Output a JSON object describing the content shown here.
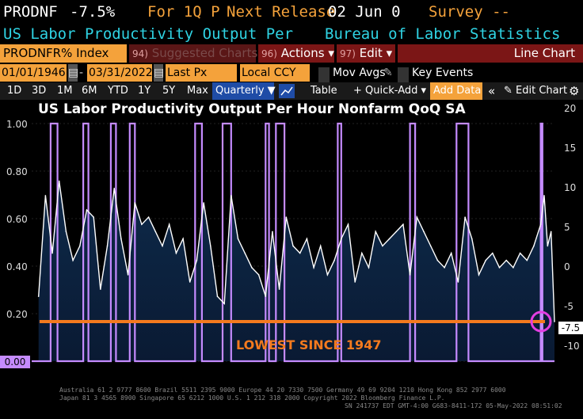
{
  "header": {
    "ticker": "PRODNF",
    "last_value": "-7.5%",
    "period_label": "For 1Q P",
    "next_release_label": "Next Release",
    "next_release_date": "02 Jun 0",
    "survey_label": "Survey --",
    "description": "US Labor Productivity Output Per",
    "source": "Bureau of Labor Statistics"
  },
  "toolbar1": {
    "ticker_field": "PRODNFR% Index",
    "suggested_num": "94)",
    "suggested_label": "Suggested Charts",
    "actions_num": "96)",
    "actions_label": "Actions",
    "edit_num": "97)",
    "edit_label": "Edit",
    "chart_type": "Line Chart"
  },
  "toolbar2": {
    "start_date": "01/01/1946",
    "end_date": "03/31/2022",
    "price_field": "Last Px",
    "currency_field": "Local CCY",
    "mov_avgs_label": "Mov Avgs",
    "key_events_label": "Key Events"
  },
  "toolbar3": {
    "periods": [
      "1D",
      "3D",
      "1M",
      "6M",
      "YTD",
      "1Y",
      "5Y",
      "Max"
    ],
    "frequency": "Quarterly",
    "table_label": "Table",
    "quick_add_label": "Quick-Add",
    "add_data_label": "Add Data",
    "edit_chart_label": "Edit Chart"
  },
  "chart": {
    "title": "US Labor Productivity Output Per Hour Nonfarm QoQ SA",
    "annotation": "LOWEST SINCE 1947",
    "last_value_flag": "-7.5",
    "recession_axis_flag": "0.00",
    "footer_line1": "Australia 61 2 9777 8600 Brazil 5511 2395 9000 Europe 44 20 7330 7500 Germany 49 69 9204 1210 Hong Kong 852 2977 6000",
    "footer_line2": "Japan 81 3 4565 8900   Singapore 65 6212 1000   U.S. 1 212 318 2000        Copyright 2022 Bloomberg Finance L.P.",
    "footer_line3": "SN 241737 EDT  GMT-4:00 G683-8411-172 05-May-2022 08:51:02"
  },
  "chart_data": {
    "type": "line",
    "title": "US Labor Productivity Output Per Hour Nonfarm QoQ SA",
    "x_range": [
      1946,
      2022
    ],
    "left_axis": {
      "ticks": [
        "1.00",
        "0.80",
        "0.60",
        "0.40",
        "0.20",
        "0.00"
      ],
      "ylim": [
        0,
        1
      ]
    },
    "right_axis": {
      "ticks": [
        "20",
        "15",
        "10",
        "5",
        "0",
        "-5",
        "-10"
      ],
      "ylim": [
        -13,
        20
      ]
    },
    "series": [
      {
        "type": "line",
        "color": "#ffffff",
        "x": [
          1947.0,
          1948.0,
          1949.0,
          1950.0,
          1951.0,
          1952.0,
          1953.0,
          1954.0,
          1955.0,
          1956.0,
          1957.0,
          1958.0,
          1959.0,
          1960.0,
          1961.0,
          1962.0,
          1963.0,
          1964.0,
          1965.0,
          1966.0,
          1967.0,
          1968.0,
          1969.0,
          1970.0,
          1971.0,
          1972.0,
          1973.0,
          1974.0,
          1975.0,
          1976.0,
          1977.0,
          1978.0,
          1979.0,
          1980.0,
          1981.0,
          1982.0,
          1983.0,
          1984.0,
          1985.0,
          1986.0,
          1987.0,
          1988.0,
          1989.0,
          1990.0,
          1991.0,
          1992.0,
          1993.0,
          1994.0,
          1995.0,
          1996.0,
          1997.0,
          1998.0,
          1999.0,
          2000.0,
          2001.0,
          2002.0,
          2003.0,
          2004.0,
          2005.0,
          2006.0,
          2007.0,
          2008.0,
          2009.0,
          2010.0,
          2011.0,
          2012.0,
          2013.0,
          2014.0,
          2015.0,
          2016.0,
          2017.0,
          2018.0,
          2019.0,
          2020.0,
          2020.5,
          2021.0,
          2021.5,
          2022.0
        ],
        "values": [
          -4,
          10,
          2,
          12,
          5,
          1,
          3,
          8,
          7,
          -3,
          3,
          11,
          4,
          -1,
          9,
          6,
          7,
          5,
          3,
          6,
          2,
          4,
          -2,
          1,
          9,
          3,
          -4,
          -5,
          10,
          4,
          2,
          0,
          -1,
          -4,
          5,
          -3,
          7,
          3,
          2,
          4,
          0,
          3,
          -1,
          1,
          4,
          6,
          -2,
          2,
          0,
          5,
          3,
          4,
          5,
          6,
          -1,
          7,
          5,
          3,
          1,
          0,
          2,
          -2,
          7,
          4,
          -1,
          1,
          2,
          0,
          1,
          0,
          2,
          1,
          3,
          6,
          10,
          3,
          5,
          -7.5
        ]
      },
      {
        "type": "step",
        "name": "recession",
        "color": "#c58bff",
        "periods": [
          [
            1948.75,
            1949.75
          ],
          [
            1953.5,
            1954.25
          ],
          [
            1957.5,
            1958.25
          ],
          [
            1960.25,
            1961.0
          ],
          [
            1969.75,
            1970.75
          ],
          [
            1973.75,
            1975.0
          ],
          [
            1980.0,
            1980.5
          ],
          [
            1981.5,
            1982.75
          ],
          [
            1990.5,
            1991.0
          ],
          [
            2001.0,
            2001.75
          ],
          [
            2007.75,
            2009.5
          ],
          [
            2020.0,
            2020.25
          ]
        ]
      }
    ],
    "reference_line": {
      "value": -7.5,
      "color": "#f47a1e"
    }
  }
}
